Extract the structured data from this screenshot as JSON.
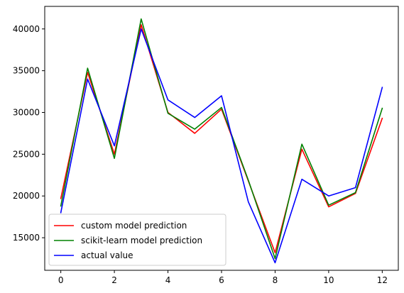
{
  "chart_data": {
    "type": "line",
    "title": "",
    "xlabel": "",
    "ylabel": "",
    "x": [
      0,
      1,
      2,
      3,
      4,
      5,
      6,
      7,
      8,
      9,
      10,
      11,
      12
    ],
    "xlim": [
      -0.6,
      12.6
    ],
    "ylim": [
      11100,
      42700
    ],
    "xticks": [
      0,
      2,
      4,
      6,
      8,
      10,
      12
    ],
    "yticks": [
      15000,
      20000,
      25000,
      30000,
      35000,
      40000
    ],
    "grid": false,
    "legend_position": "lower-left",
    "series": [
      {
        "name": "custom model prediction",
        "color": "#ff0000",
        "values": [
          19700,
          34800,
          25000,
          40500,
          30000,
          27500,
          30400,
          21800,
          13200,
          25600,
          18700,
          20300,
          29300
        ]
      },
      {
        "name": "scikit-learn model prediction",
        "color": "#008000",
        "values": [
          18800,
          35300,
          24500,
          41200,
          29900,
          28000,
          30600,
          21900,
          12500,
          26200,
          18900,
          20400,
          30500
        ]
      },
      {
        "name": "actual value",
        "color": "#0000ff",
        "values": [
          18000,
          34000,
          26000,
          40000,
          31500,
          29400,
          32000,
          19300,
          12000,
          22000,
          20000,
          21000,
          33000
        ]
      }
    ]
  }
}
